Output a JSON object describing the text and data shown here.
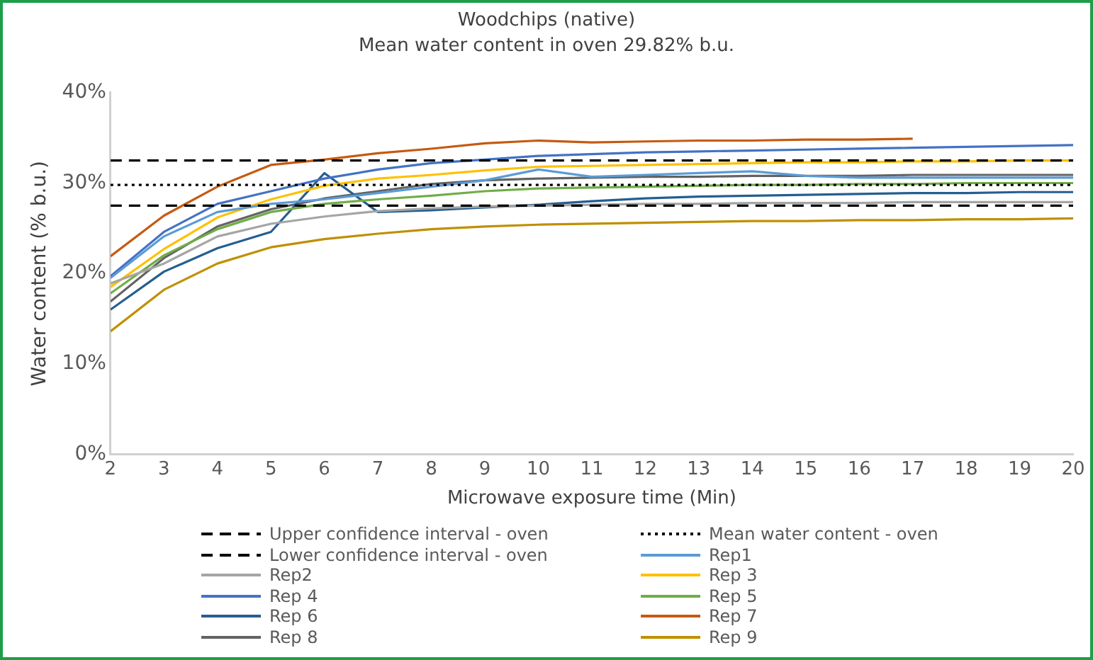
{
  "chart_data": {
    "type": "line",
    "title": "Woodchips (native)",
    "subtitle": "Mean water content in oven 29.82% b.u.",
    "xlabel": "Microwave exposure time (Min)",
    "ylabel": "Water content (% b.u.)",
    "x": [
      2,
      3,
      4,
      5,
      6,
      7,
      8,
      9,
      10,
      11,
      12,
      13,
      14,
      15,
      16,
      17,
      18,
      19,
      20
    ],
    "xlim": [
      2,
      20
    ],
    "xticks": [
      2,
      3,
      4,
      5,
      6,
      7,
      8,
      9,
      10,
      11,
      12,
      13,
      14,
      15,
      16,
      17,
      18,
      19,
      20
    ],
    "ylim": [
      0,
      40
    ],
    "yticks": [
      {
        "value": 0,
        "label": "0%"
      },
      {
        "value": 10,
        "label": "10%"
      },
      {
        "value": 20,
        "label": "20%"
      },
      {
        "value": 30,
        "label": "30%"
      },
      {
        "value": 40,
        "label": "40%"
      }
    ],
    "grid": false,
    "legend": "bottom",
    "marker": "none",
    "line_style": "solid",
    "series": [
      {
        "name": "Upper confidence interval - oven",
        "color": "#000000",
        "line_style": "dashed",
        "values": [
          32.5,
          32.5,
          32.5,
          32.5,
          32.5,
          32.5,
          32.5,
          32.5,
          32.5,
          32.5,
          32.5,
          32.5,
          32.5,
          32.5,
          32.5,
          32.5,
          32.5,
          32.5,
          32.5
        ]
      },
      {
        "name": "Mean water content - oven",
        "color": "#000000",
        "line_style": "dotted",
        "values": [
          29.8,
          29.8,
          29.8,
          29.8,
          29.8,
          29.8,
          29.8,
          29.8,
          29.8,
          29.8,
          29.8,
          29.8,
          29.8,
          29.8,
          29.8,
          29.8,
          29.8,
          29.8,
          29.8
        ]
      },
      {
        "name": "Lower confidence interval - oven",
        "color": "#000000",
        "line_style": "dashed",
        "values": [
          27.5,
          27.5,
          27.5,
          27.5,
          27.5,
          27.5,
          27.5,
          27.5,
          27.5,
          27.5,
          27.5,
          27.5,
          27.5,
          27.5,
          27.5,
          27.5,
          27.5,
          27.5,
          27.5
        ]
      },
      {
        "name": "Rep1",
        "color": "#5b9bd5",
        "values": [
          19.5,
          24.1,
          26.8,
          27.7,
          28.2,
          28.9,
          29.6,
          30.3,
          31.5,
          30.7,
          30.9,
          31.1,
          31.3,
          30.8,
          30.6,
          30.6,
          30.6,
          30.6,
          30.6
        ]
      },
      {
        "name": "Rep2",
        "color": "#a5a5a5",
        "values": [
          18.9,
          21.1,
          24.1,
          25.5,
          26.3,
          26.9,
          27.2,
          27.4,
          27.5,
          27.6,
          27.7,
          27.7,
          27.8,
          27.8,
          27.8,
          27.9,
          27.9,
          27.9,
          27.9
        ]
      },
      {
        "name": "Rep 3",
        "color": "#ffc000",
        "values": [
          18.5,
          22.7,
          26.2,
          28.2,
          29.7,
          30.5,
          30.9,
          31.4,
          31.8,
          31.9,
          32.0,
          32.1,
          32.2,
          32.3,
          32.3,
          32.4,
          32.4,
          32.5,
          32.5
        ]
      },
      {
        "name": "Rep 4",
        "color": "#4472c4",
        "values": [
          19.7,
          24.6,
          27.7,
          29.1,
          30.5,
          31.5,
          32.2,
          32.6,
          33.0,
          33.2,
          33.4,
          33.5,
          33.6,
          33.7,
          33.8,
          33.9,
          34.0,
          34.1,
          34.2
        ]
      },
      {
        "name": "Rep 5",
        "color": "#70ad47",
        "values": [
          17.8,
          22.0,
          24.9,
          26.8,
          27.7,
          28.2,
          28.6,
          29.1,
          29.4,
          29.5,
          29.6,
          29.7,
          29.8,
          29.8,
          29.9,
          29.9,
          30.0,
          30.0,
          30.0
        ]
      },
      {
        "name": "Rep 6",
        "color": "#255e91",
        "values": [
          16.0,
          20.2,
          22.8,
          24.6,
          31.1,
          26.8,
          27.0,
          27.3,
          27.6,
          28.0,
          28.3,
          28.5,
          28.6,
          28.7,
          28.8,
          28.9,
          28.9,
          29.0,
          29.0
        ]
      },
      {
        "name": "Rep 7",
        "color": "#c55a11",
        "values": [
          21.9,
          26.4,
          29.6,
          32.0,
          32.6,
          33.3,
          33.8,
          34.4,
          34.7,
          34.5,
          34.6,
          34.7,
          34.7,
          34.8,
          34.8,
          34.9,
          null,
          null,
          null
        ]
      },
      {
        "name": "Rep 8",
        "color": "#636363",
        "values": [
          16.9,
          21.7,
          25.2,
          27.1,
          28.3,
          29.1,
          29.9,
          30.3,
          30.5,
          30.6,
          30.7,
          30.7,
          30.8,
          30.8,
          30.8,
          30.9,
          30.9,
          30.9,
          30.9
        ]
      },
      {
        "name": "Rep 9",
        "color": "#bf9000",
        "values": [
          13.6,
          18.2,
          21.1,
          22.9,
          23.8,
          24.4,
          24.9,
          25.2,
          25.4,
          25.5,
          25.6,
          25.7,
          25.8,
          25.8,
          25.9,
          25.9,
          26.0,
          26.0,
          26.1
        ]
      }
    ]
  }
}
